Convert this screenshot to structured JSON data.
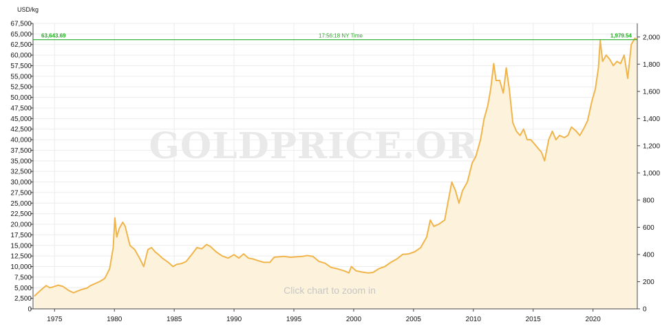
{
  "chart_data": {
    "type": "area",
    "title": "",
    "left_axis_unit": "USD/kg",
    "left_ylim": [
      0,
      67500
    ],
    "left_ticks": [
      "0",
      "2,500",
      "5,000",
      "7,500",
      "10,000",
      "12,500",
      "15,000",
      "17,500",
      "20,000",
      "22,500",
      "25,000",
      "27,500",
      "30,000",
      "32,500",
      "35,000",
      "37,500",
      "40,000",
      "42,500",
      "45,000",
      "47,500",
      "50,000",
      "52,500",
      "55,000",
      "57,500",
      "60,000",
      "62,500",
      "65,000",
      "67,500"
    ],
    "right_ylim": [
      0,
      2100
    ],
    "right_ticks": [
      "0",
      "200",
      "400",
      "600",
      "800",
      "1,000",
      "1,200",
      "1,400",
      "1,600",
      "1,800",
      "2,000"
    ],
    "xlim": [
      1973.2,
      2023.7
    ],
    "x_ticks": [
      "1975",
      "1980",
      "1985",
      "1990",
      "1995",
      "2000",
      "2005",
      "2010",
      "2015",
      "2020"
    ],
    "grid": "vertical-and-horizontal",
    "reference_line": {
      "value_per_kg": 63643.69,
      "left_label": "63,643.69",
      "center_label": "17:56:18 NY Time",
      "right_label": "1,979.54",
      "color": "#22aa22"
    },
    "series": [
      {
        "color": "#f0b44a",
        "fill": "#fdf3dc",
        "x": [
          1973.3,
          1973.6,
          1974.0,
          1974.3,
          1974.6,
          1974.9,
          1975.3,
          1975.7,
          1976.2,
          1976.6,
          1976.9,
          1977.3,
          1977.7,
          1978.0,
          1978.4,
          1978.8,
          1979.2,
          1979.6,
          1979.9,
          1980.04,
          1980.2,
          1980.4,
          1980.7,
          1980.9,
          1981.3,
          1981.7,
          1982.1,
          1982.45,
          1982.8,
          1983.1,
          1983.4,
          1983.7,
          1984.0,
          1984.5,
          1984.9,
          1985.2,
          1985.6,
          1986.0,
          1986.5,
          1986.9,
          1987.3,
          1987.7,
          1988.0,
          1988.5,
          1989.0,
          1989.5,
          1990.0,
          1990.4,
          1990.8,
          1991.2,
          1991.6,
          1992.0,
          1992.5,
          1993.0,
          1993.35,
          1993.7,
          1994.2,
          1994.7,
          1995.2,
          1995.7,
          1996.1,
          1996.6,
          1997.1,
          1997.6,
          1998.1,
          1998.6,
          1999.2,
          1999.6,
          1999.8,
          2000.2,
          2000.7,
          2001.2,
          2001.6,
          2002.1,
          2002.6,
          2003.1,
          2003.6,
          2004.1,
          2004.6,
          2005.1,
          2005.6,
          2006.1,
          2006.4,
          2006.7,
          2007.1,
          2007.6,
          2008.0,
          2008.2,
          2008.5,
          2008.8,
          2009.1,
          2009.5,
          2009.9,
          2010.2,
          2010.6,
          2010.9,
          2011.2,
          2011.45,
          2011.7,
          2011.9,
          2012.2,
          2012.5,
          2012.75,
          2013.0,
          2013.3,
          2013.6,
          2013.9,
          2014.2,
          2014.5,
          2014.8,
          2015.1,
          2015.4,
          2015.7,
          2015.95,
          2016.3,
          2016.6,
          2016.9,
          2017.2,
          2017.6,
          2017.9,
          2018.2,
          2018.6,
          2018.9,
          2019.2,
          2019.55,
          2019.9,
          2020.2,
          2020.45,
          2020.6,
          2020.8,
          2021.1,
          2021.4,
          2021.7,
          2022.0,
          2022.3,
          2022.6,
          2022.9,
          2023.2,
          2023.5,
          2023.65
        ],
        "values_per_kg": [
          3000,
          3800,
          4800,
          5500,
          5000,
          5200,
          5600,
          5300,
          4300,
          3800,
          4200,
          4600,
          4900,
          5500,
          6000,
          6500,
          7200,
          9500,
          14500,
          21500,
          17000,
          19000,
          20500,
          19500,
          15000,
          14000,
          12000,
          10000,
          14000,
          14500,
          13500,
          12800,
          12000,
          11000,
          10000,
          10500,
          10700,
          11200,
          13000,
          14500,
          14200,
          15200,
          14800,
          13500,
          12500,
          12000,
          12800,
          12000,
          13000,
          12000,
          11800,
          11400,
          11000,
          11000,
          12200,
          12300,
          12400,
          12200,
          12300,
          12400,
          12600,
          12400,
          11200,
          10800,
          9800,
          9500,
          9000,
          8500,
          10000,
          9000,
          8700,
          8500,
          8600,
          9500,
          10000,
          11000,
          11800,
          12900,
          13000,
          13500,
          14500,
          17000,
          21000,
          19500,
          20000,
          21000,
          27000,
          30000,
          28000,
          25000,
          28000,
          30000,
          34500,
          36000,
          40000,
          45000,
          48000,
          52000,
          58000,
          54000,
          54000,
          51000,
          57000,
          52000,
          44000,
          42000,
          41000,
          42500,
          40000,
          40000,
          39000,
          38000,
          37000,
          35000,
          40000,
          42000,
          40000,
          41000,
          40500,
          41000,
          43000,
          42000,
          41000,
          42500,
          44500,
          49000,
          52000,
          57000,
          63500,
          58500,
          60000,
          59000,
          57500,
          58500,
          58000,
          60000,
          54500,
          62500,
          64000,
          63644
        ]
      }
    ],
    "watermark": "GOLDPRICE.ORG",
    "hint": "Click chart to zoom in"
  }
}
